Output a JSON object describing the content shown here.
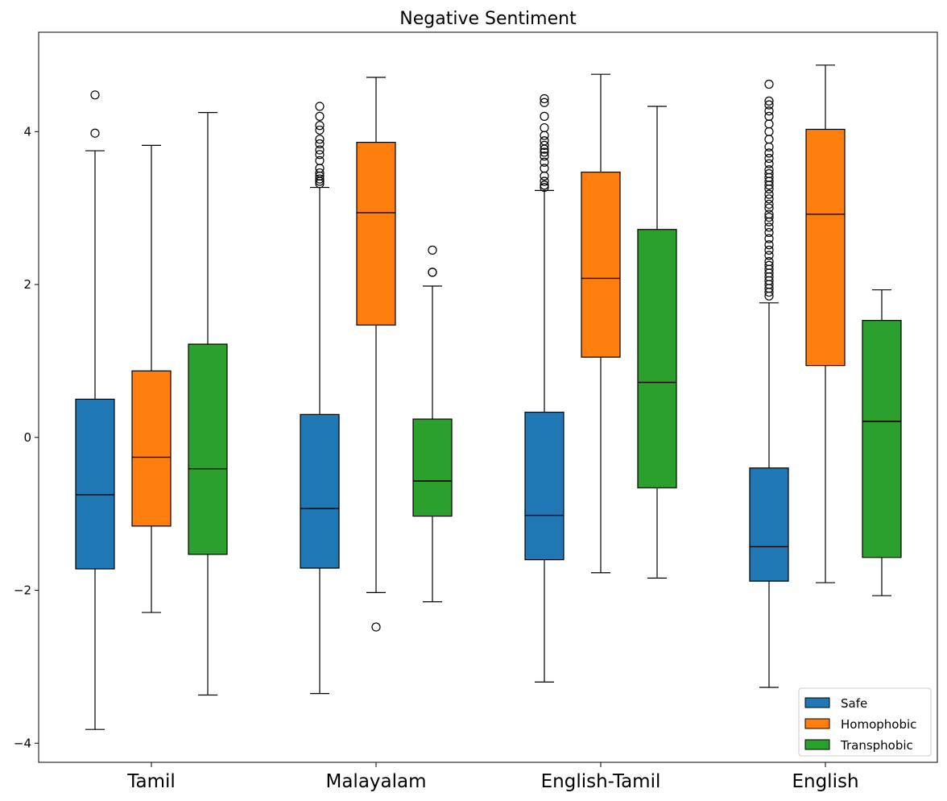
{
  "chart_data": {
    "type": "box",
    "title": "Negative Sentiment",
    "xlabel": "",
    "ylabel": "",
    "ylim": [
      -4.25,
      5.3
    ],
    "yticks": [
      -4,
      -2,
      0,
      2,
      4
    ],
    "categories": [
      "Tamil",
      "Malayalam",
      "English-Tamil",
      "English"
    ],
    "legend_position": "lower-right",
    "grid": false,
    "series": [
      {
        "name": "Safe",
        "color": "#1f77b4",
        "boxes": [
          {
            "whisker_low": -3.82,
            "q1": -1.72,
            "median": -0.75,
            "q3": 0.5,
            "whisker_high": 3.75,
            "outliers": [
              4.48,
              3.98
            ]
          },
          {
            "whisker_low": -3.35,
            "q1": -1.71,
            "median": -0.93,
            "q3": 0.3,
            "whisker_high": 3.27,
            "outliers": [
              4.33,
              4.2,
              4.08,
              4.02,
              3.9,
              3.84,
              3.76,
              3.7,
              3.62,
              3.52,
              3.46,
              3.42,
              3.38,
              3.35,
              3.32
            ]
          },
          {
            "whisker_low": -3.2,
            "q1": -1.6,
            "median": -1.02,
            "q3": 0.33,
            "whisker_high": 3.23,
            "outliers": [
              4.43,
              4.38,
              4.2,
              4.05,
              3.95,
              3.88,
              3.82,
              3.77,
              3.73,
              3.68,
              3.6,
              3.52,
              3.42,
              3.35,
              3.3,
              3.27
            ]
          },
          {
            "whisker_low": -3.27,
            "q1": -1.88,
            "median": -1.43,
            "q3": -0.4,
            "whisker_high": 1.76,
            "outliers": [
              4.62,
              4.4,
              4.35,
              4.27,
              4.2,
              4.1,
              4.0,
              3.9,
              3.8,
              3.72,
              3.65,
              3.58,
              3.5,
              3.45,
              3.4,
              3.35,
              3.3,
              3.25,
              3.18,
              3.12,
              3.05,
              3.0,
              2.92,
              2.88,
              2.82,
              2.75,
              2.68,
              2.6,
              2.52,
              2.45,
              2.38,
              2.3,
              2.25,
              2.2,
              2.15,
              2.1,
              2.05,
              2.0,
              1.95,
              1.9,
              1.85
            ]
          }
        ]
      },
      {
        "name": "Homophobic",
        "color": "#ff7f0e",
        "boxes": [
          {
            "whisker_low": -2.29,
            "q1": -1.16,
            "median": -0.26,
            "q3": 0.87,
            "whisker_high": 3.82,
            "outliers": []
          },
          {
            "whisker_low": -2.03,
            "q1": 1.47,
            "median": 2.94,
            "q3": 3.86,
            "whisker_high": 4.71,
            "outliers": [
              -2.48
            ]
          },
          {
            "whisker_low": -1.77,
            "q1": 1.05,
            "median": 2.08,
            "q3": 3.47,
            "whisker_high": 4.75,
            "outliers": []
          },
          {
            "whisker_low": -1.9,
            "q1": 0.94,
            "median": 2.92,
            "q3": 4.03,
            "whisker_high": 4.87,
            "outliers": []
          }
        ]
      },
      {
        "name": "Transphobic",
        "color": "#2ca02c",
        "boxes": [
          {
            "whisker_low": -3.37,
            "q1": -1.53,
            "median": -0.41,
            "q3": 1.22,
            "whisker_high": 4.25,
            "outliers": []
          },
          {
            "whisker_low": -2.15,
            "q1": -1.03,
            "median": -0.57,
            "q3": 0.24,
            "whisker_high": 1.98,
            "outliers": [
              2.45,
              2.16,
              2.16
            ]
          },
          {
            "whisker_low": -1.84,
            "q1": -0.66,
            "median": 0.72,
            "q3": 2.72,
            "whisker_high": 4.33,
            "outliers": []
          },
          {
            "whisker_low": -2.07,
            "q1": -1.57,
            "median": 0.21,
            "q3": 1.53,
            "whisker_high": 1.93,
            "outliers": []
          }
        ]
      }
    ]
  }
}
